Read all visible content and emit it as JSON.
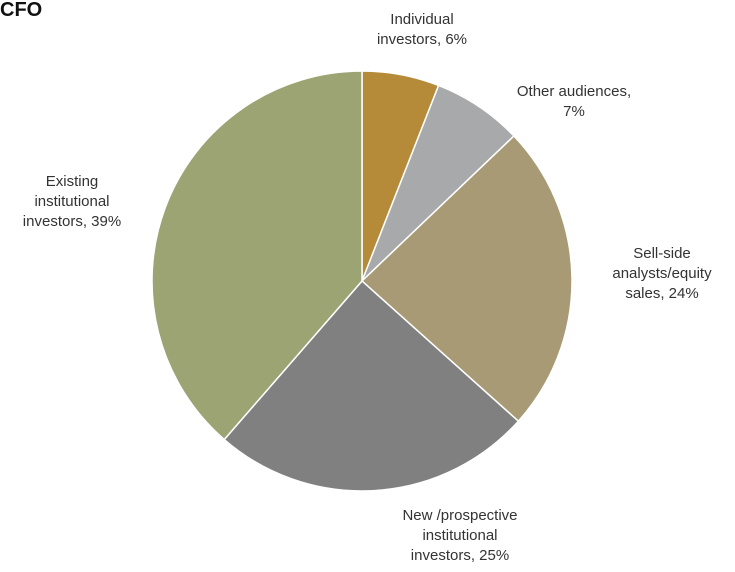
{
  "header": {
    "fragment": "CFO"
  },
  "chart_data": {
    "type": "pie",
    "title": "",
    "start_angle_deg": 0,
    "direction": "clockwise",
    "slices": [
      {
        "label_lines": [
          "Individual",
          "investors, 6%"
        ],
        "value": 6,
        "color": "#b58a38"
      },
      {
        "label_lines": [
          "Other audiences,",
          "7%"
        ],
        "value": 7,
        "color": "#a8a9ab"
      },
      {
        "label_lines": [
          "Sell-side",
          "analysts/equity",
          "sales, 24%"
        ],
        "value": 24,
        "color": "#a79a75"
      },
      {
        "label_lines": [
          "New /prospective",
          "institutional",
          "investors, 25%"
        ],
        "value": 25,
        "color": "#808081"
      },
      {
        "label_lines": [
          "Existing",
          "institutional",
          "investors, 39%"
        ],
        "value": 39,
        "color": "#9ca474"
      }
    ]
  }
}
